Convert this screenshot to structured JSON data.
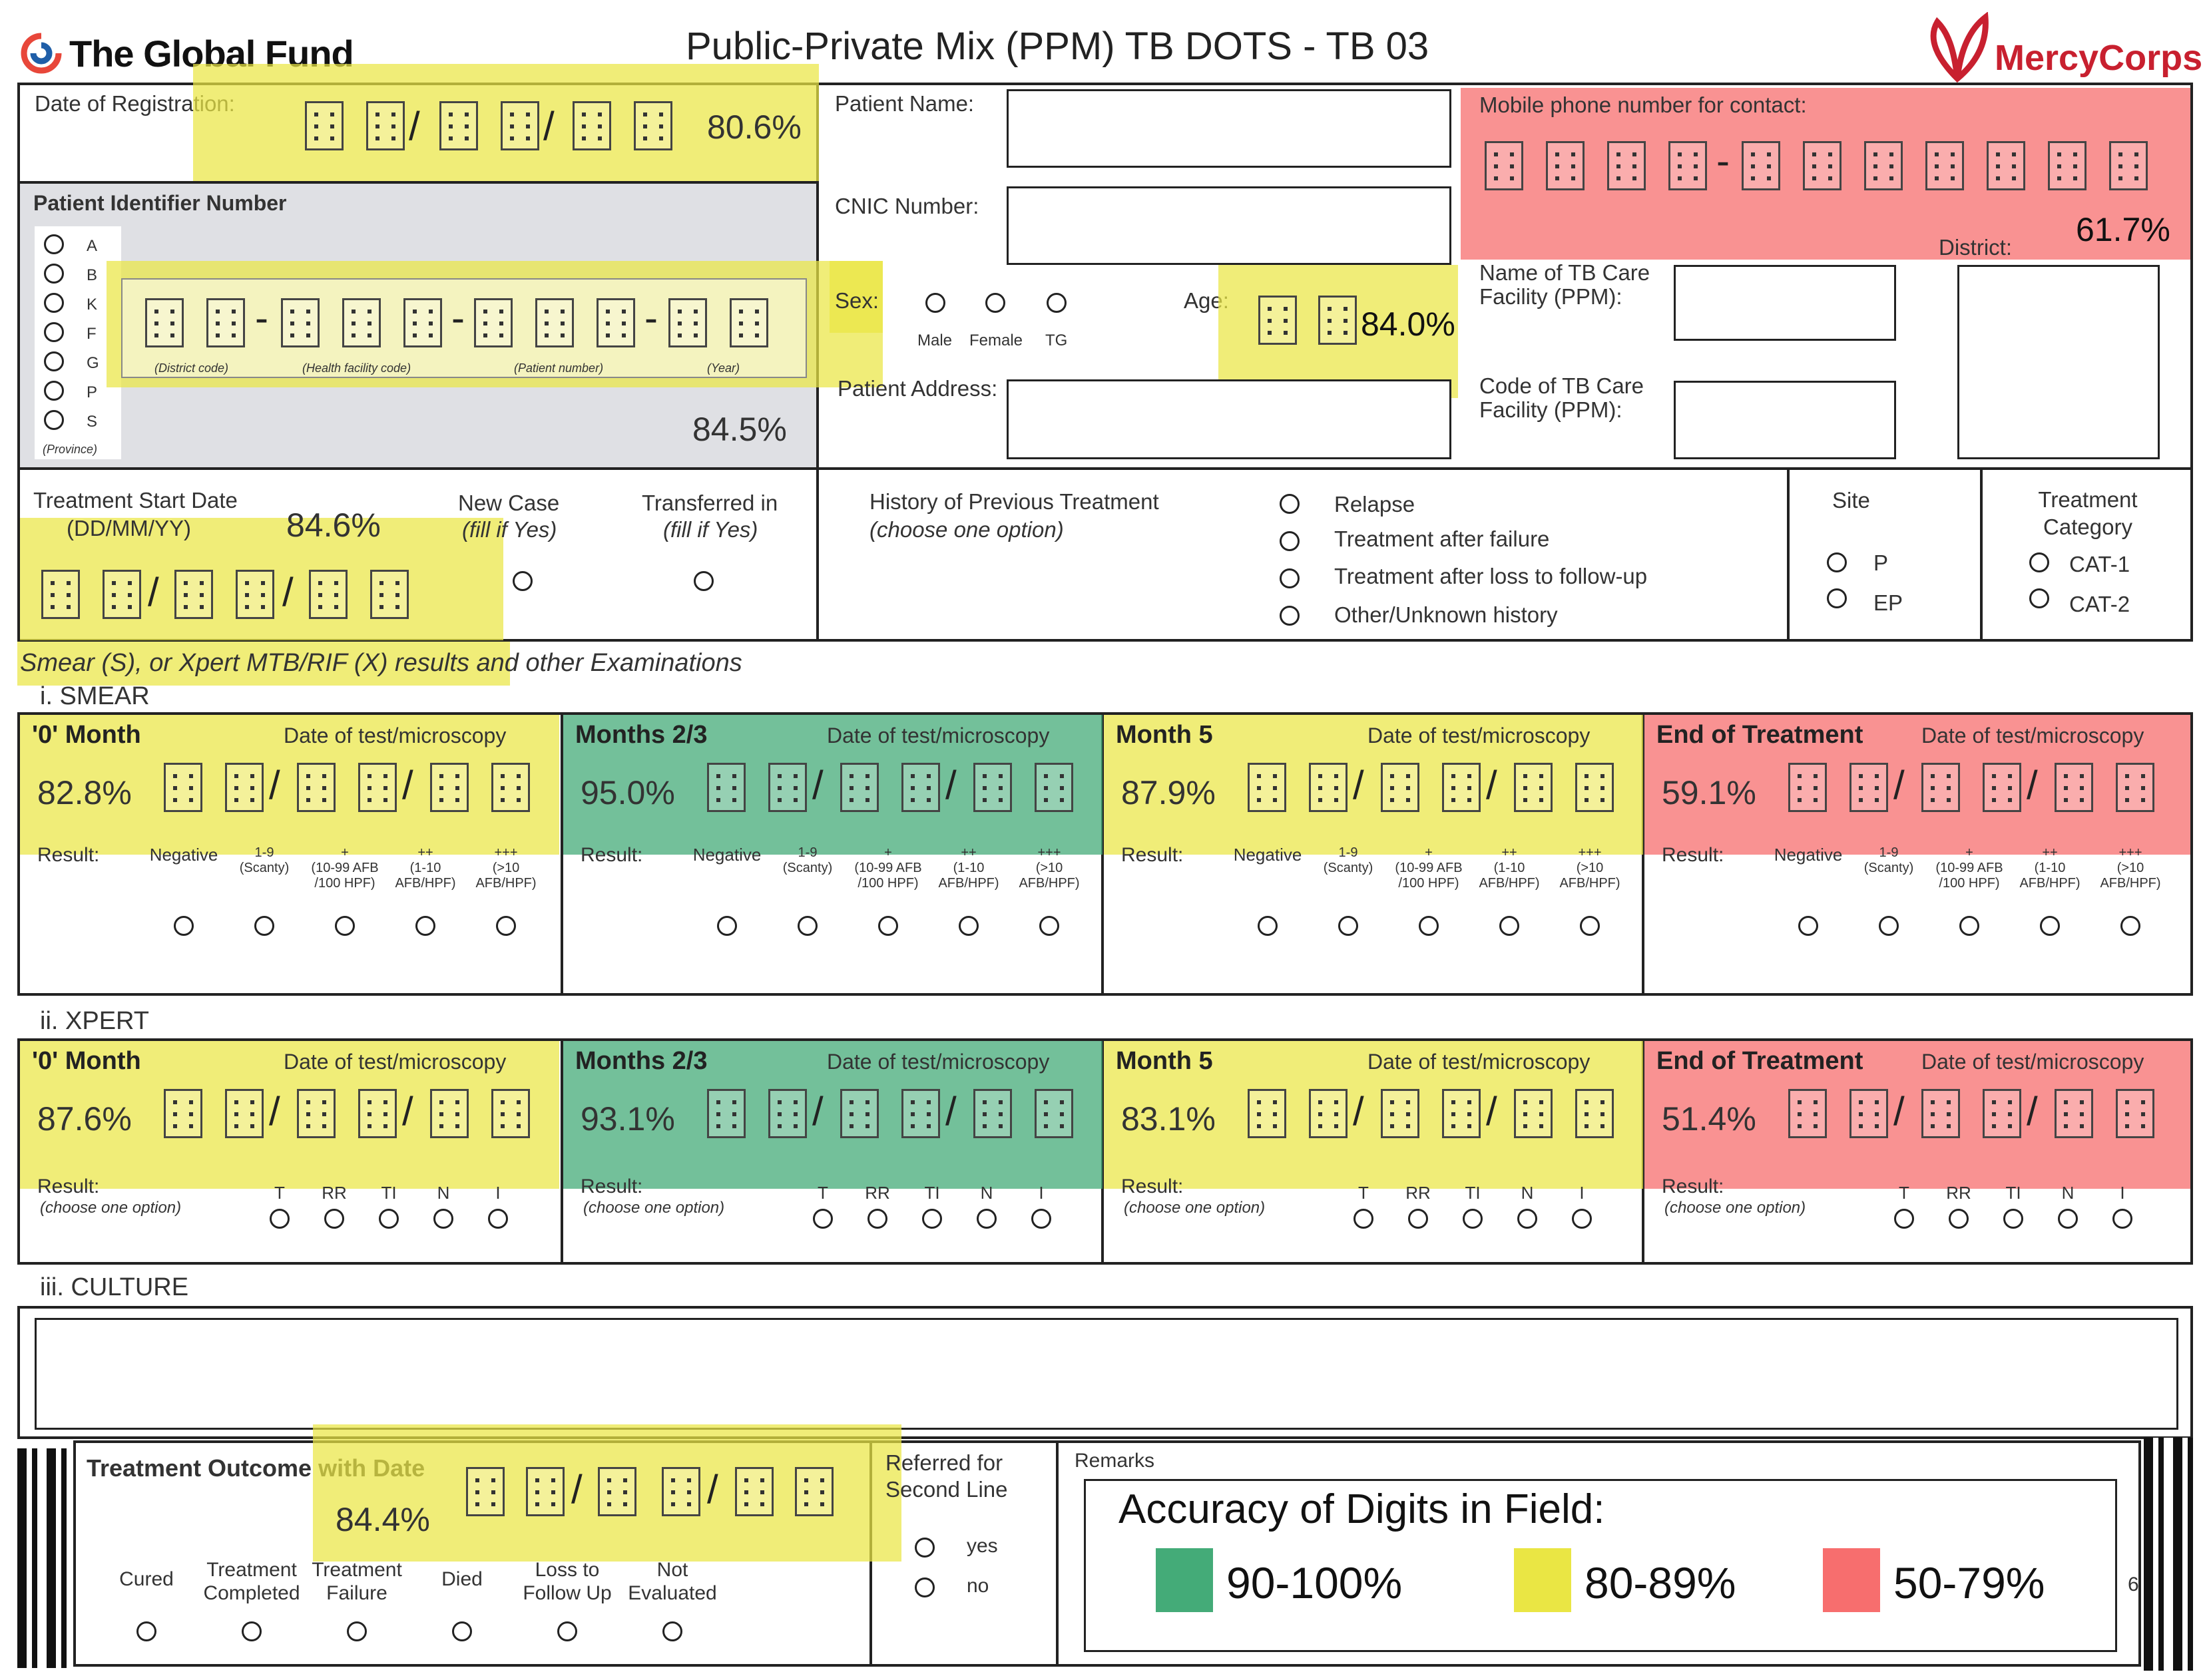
{
  "header": {
    "funder_logo": "The Global Fund",
    "title": "Public-Private Mix (PPM) TB DOTS - TB 03",
    "partner_logo": "MercyCorps"
  },
  "colors": {
    "high": "#44ab78",
    "medium": "#eae644",
    "low": "#f76e6e"
  },
  "registration": {
    "label": "Date of Registration:",
    "accuracy": "80.6%"
  },
  "patient_name": {
    "label": "Patient Name:"
  },
  "cnic": {
    "label": "CNIC Number:"
  },
  "mobile": {
    "label": "Mobile phone number for contact:",
    "accuracy": "61.7%"
  },
  "district": {
    "label": "District:"
  },
  "pin": {
    "label": "Patient Identifier Number",
    "provinces": [
      "A",
      "B",
      "K",
      "F",
      "G",
      "P",
      "S"
    ],
    "province_caption": "(Province)",
    "captions": [
      "(District code)",
      "(Health facility code)",
      "(Patient number)",
      "(Year)"
    ],
    "accuracy": "84.5%"
  },
  "sex": {
    "label": "Sex:",
    "options": [
      "Male",
      "Female",
      "TG"
    ]
  },
  "age": {
    "label": "Age:",
    "accuracy": "84.0%"
  },
  "address": {
    "label": "Patient Address:"
  },
  "facility_name": {
    "label": "Name of TB Care Facility (PPM):"
  },
  "facility_code": {
    "label": "Code of TB Care Facility (PPM):"
  },
  "treatment_start": {
    "label": "Treatment Start Date",
    "format": "(DD/MM/YY)",
    "accuracy": "84.6%"
  },
  "new_case": {
    "label": "New Case",
    "hint": "(fill if Yes)"
  },
  "transferred": {
    "label": "Transferred in",
    "hint": "(fill if Yes)"
  },
  "history": {
    "label": "History of Previous Treatment",
    "hint": "(choose one option)",
    "options": [
      "Relapse",
      "Treatment after failure",
      "Treatment after loss to follow-up",
      "Other/Unknown history"
    ]
  },
  "site": {
    "label": "Site",
    "options": [
      "P",
      "EP"
    ]
  },
  "category": {
    "label": "Treatment Category",
    "options": [
      "CAT-1",
      "CAT-2"
    ]
  },
  "exams_title": "Smear (S), or Xpert MTB/RIF (X) results and other Examinations",
  "smear": {
    "title": "i. SMEAR",
    "date_label": "Date of test/microscopy",
    "result_label": "Result:",
    "options": [
      "Negative",
      "1-9\n(Scanty)",
      "+\n(10-99 AFB\n/100 HPF)",
      "++\n(1-10\nAFB/HPF)",
      "+++\n(>10\nAFB/HPF)"
    ],
    "panels": [
      {
        "name": "'0' Month",
        "accuracy": "82.8%"
      },
      {
        "name": "Months 2/3",
        "accuracy": "95.0%"
      },
      {
        "name": "Month 5",
        "accuracy": "87.9%"
      },
      {
        "name": "End of Treatment",
        "accuracy": "59.1%"
      }
    ]
  },
  "xpert": {
    "title": "ii. XPERT",
    "date_label": "Date of test/microscopy",
    "result_label": "Result:",
    "hint": "(choose one option)",
    "options": [
      "T",
      "RR",
      "TI",
      "N",
      "I"
    ],
    "panels": [
      {
        "name": "'0' Month",
        "accuracy": "87.6%"
      },
      {
        "name": "Months 2/3",
        "accuracy": "93.1%"
      },
      {
        "name": "Month 5",
        "accuracy": "83.1%"
      },
      {
        "name": "End of Treatment",
        "accuracy": "51.4%"
      }
    ]
  },
  "culture": {
    "title": "iii. CULTURE"
  },
  "outcome": {
    "label": "Treatment Outcome with Date",
    "accuracy": "84.4%",
    "options": [
      "Cured",
      "Treatment\nCompleted",
      "Treatment\nFailure",
      "Died",
      "Loss to\nFollow Up",
      "Not\nEvaluated"
    ]
  },
  "referred": {
    "label": "Referred for\nSecond Line",
    "options": [
      "yes",
      "no"
    ]
  },
  "remarks": {
    "label": "Remarks"
  },
  "legend": {
    "title": "Accuracy of Digits in Field:",
    "items": [
      {
        "label": "90-100%",
        "color": "#44ab78"
      },
      {
        "label": "80-89%",
        "color": "#eae644"
      },
      {
        "label": "50-79%",
        "color": "#f76e6e"
      }
    ]
  },
  "page_number": "6"
}
